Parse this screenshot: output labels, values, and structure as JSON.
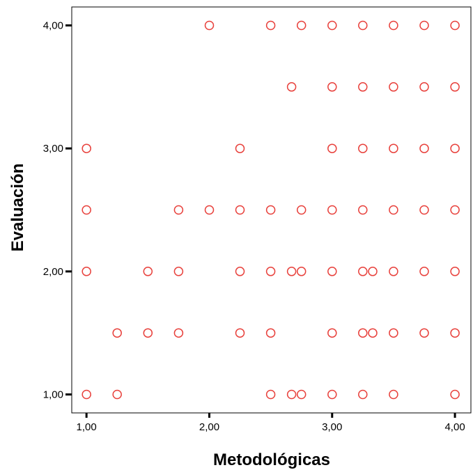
{
  "chart_data": {
    "type": "scatter",
    "title": "",
    "xlabel": "Metodológicas",
    "ylabel": "Evaluación",
    "xlim": [
      0.88,
      4.13
    ],
    "ylim": [
      0.85,
      4.15
    ],
    "xticks": [
      1,
      2,
      3,
      4
    ],
    "xtick_labels": [
      "1,00",
      "2,00",
      "3,00",
      "4,00"
    ],
    "yticks": [
      1,
      2,
      3,
      4
    ],
    "ytick_labels": [
      "1,00",
      "2,00",
      "3,00",
      "4,00"
    ],
    "grid": false,
    "legend": "none",
    "marker": "open-circle",
    "marker_color": "#e8413c",
    "points": [
      {
        "x": 2.0,
        "y": 4.0
      },
      {
        "x": 2.5,
        "y": 4.0
      },
      {
        "x": 2.75,
        "y": 4.0
      },
      {
        "x": 3.0,
        "y": 4.0
      },
      {
        "x": 3.25,
        "y": 4.0
      },
      {
        "x": 3.5,
        "y": 4.0
      },
      {
        "x": 3.75,
        "y": 4.0
      },
      {
        "x": 4.0,
        "y": 4.0
      },
      {
        "x": 2.67,
        "y": 3.5
      },
      {
        "x": 3.0,
        "y": 3.5
      },
      {
        "x": 3.25,
        "y": 3.5
      },
      {
        "x": 3.5,
        "y": 3.5
      },
      {
        "x": 3.75,
        "y": 3.5
      },
      {
        "x": 4.0,
        "y": 3.5
      },
      {
        "x": 1.0,
        "y": 3.0
      },
      {
        "x": 2.25,
        "y": 3.0
      },
      {
        "x": 3.0,
        "y": 3.0
      },
      {
        "x": 3.25,
        "y": 3.0
      },
      {
        "x": 3.5,
        "y": 3.0
      },
      {
        "x": 3.75,
        "y": 3.0
      },
      {
        "x": 4.0,
        "y": 3.0
      },
      {
        "x": 1.0,
        "y": 2.5
      },
      {
        "x": 1.75,
        "y": 2.5
      },
      {
        "x": 2.0,
        "y": 2.5
      },
      {
        "x": 2.25,
        "y": 2.5
      },
      {
        "x": 2.5,
        "y": 2.5
      },
      {
        "x": 2.75,
        "y": 2.5
      },
      {
        "x": 3.0,
        "y": 2.5
      },
      {
        "x": 3.25,
        "y": 2.5
      },
      {
        "x": 3.5,
        "y": 2.5
      },
      {
        "x": 3.75,
        "y": 2.5
      },
      {
        "x": 4.0,
        "y": 2.5
      },
      {
        "x": 1.0,
        "y": 2.0
      },
      {
        "x": 1.5,
        "y": 2.0
      },
      {
        "x": 1.75,
        "y": 2.0
      },
      {
        "x": 2.25,
        "y": 2.0
      },
      {
        "x": 2.5,
        "y": 2.0
      },
      {
        "x": 2.67,
        "y": 2.0
      },
      {
        "x": 2.75,
        "y": 2.0
      },
      {
        "x": 3.0,
        "y": 2.0
      },
      {
        "x": 3.25,
        "y": 2.0
      },
      {
        "x": 3.33,
        "y": 2.0
      },
      {
        "x": 3.5,
        "y": 2.0
      },
      {
        "x": 3.75,
        "y": 2.0
      },
      {
        "x": 4.0,
        "y": 2.0
      },
      {
        "x": 1.25,
        "y": 1.5
      },
      {
        "x": 1.5,
        "y": 1.5
      },
      {
        "x": 1.75,
        "y": 1.5
      },
      {
        "x": 2.25,
        "y": 1.5
      },
      {
        "x": 2.5,
        "y": 1.5
      },
      {
        "x": 3.0,
        "y": 1.5
      },
      {
        "x": 3.25,
        "y": 1.5
      },
      {
        "x": 3.33,
        "y": 1.5
      },
      {
        "x": 3.5,
        "y": 1.5
      },
      {
        "x": 3.75,
        "y": 1.5
      },
      {
        "x": 4.0,
        "y": 1.5
      },
      {
        "x": 1.0,
        "y": 1.0
      },
      {
        "x": 1.25,
        "y": 1.0
      },
      {
        "x": 2.5,
        "y": 1.0
      },
      {
        "x": 2.67,
        "y": 1.0
      },
      {
        "x": 2.75,
        "y": 1.0
      },
      {
        "x": 3.0,
        "y": 1.0
      },
      {
        "x": 3.25,
        "y": 1.0
      },
      {
        "x": 3.5,
        "y": 1.0
      },
      {
        "x": 4.0,
        "y": 1.0
      }
    ]
  }
}
